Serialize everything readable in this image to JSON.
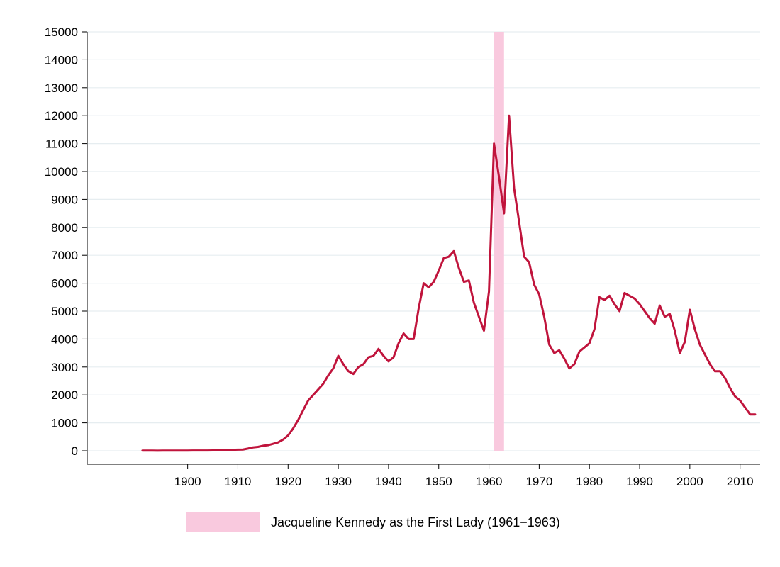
{
  "chart_data": {
    "type": "line",
    "title": "",
    "xlabel": "",
    "ylabel": "",
    "xlim": [
      1880,
      2014
    ],
    "ylim": [
      0,
      15000
    ],
    "x_ticks": [
      1900,
      1910,
      1920,
      1930,
      1940,
      1950,
      1960,
      1970,
      1980,
      1990,
      2000,
      2010
    ],
    "y_ticks": [
      0,
      1000,
      2000,
      3000,
      4000,
      5000,
      6000,
      7000,
      8000,
      9000,
      10000,
      11000,
      12000,
      13000,
      14000,
      15000
    ],
    "grid": "horizontal",
    "line_color": "#c0143c",
    "band_color": "#f9c9de",
    "highlight_band": {
      "label": "Jacqueline Kennedy as the First Lady (1961−1963)",
      "x_start": 1961,
      "x_end": 1963,
      "y_top": 15000
    },
    "legend_placement": "bottom-center",
    "series": [
      {
        "x": [
          1891,
          1892,
          1893,
          1894,
          1895,
          1896,
          1897,
          1898,
          1899,
          1900,
          1901,
          1902,
          1903,
          1904,
          1905,
          1906,
          1907,
          1908,
          1909,
          1910,
          1911,
          1912,
          1913,
          1914,
          1915,
          1916,
          1917,
          1918,
          1919,
          1920,
          1921,
          1922,
          1923,
          1924,
          1925,
          1926,
          1927,
          1928,
          1929,
          1930,
          1931,
          1932,
          1933,
          1934,
          1935,
          1936,
          1937,
          1938,
          1939,
          1940,
          1941,
          1942,
          1943,
          1944,
          1945,
          1946,
          1947,
          1948,
          1949,
          1950,
          1951,
          1952,
          1953,
          1954,
          1955,
          1956,
          1957,
          1958,
          1959,
          1960,
          1961,
          1962,
          1963,
          1964,
          1965,
          1966,
          1967,
          1968,
          1969,
          1970,
          1971,
          1972,
          1973,
          1974,
          1975,
          1976,
          1977,
          1978,
          1979,
          1980,
          1981,
          1982,
          1983,
          1984,
          1985,
          1986,
          1987,
          1988,
          1989,
          1990,
          1991,
          1992,
          1993,
          1994,
          1995,
          1996,
          1997,
          1998,
          1999,
          2000,
          2001,
          2002,
          2003,
          2004,
          2005,
          2006,
          2007,
          2008,
          2009,
          2010,
          2011,
          2012,
          2013
        ],
        "values": [
          5,
          5,
          5,
          4,
          5,
          5,
          5,
          6,
          6,
          7,
          8,
          8,
          8,
          10,
          12,
          15,
          25,
          30,
          35,
          40,
          45,
          80,
          120,
          140,
          180,
          200,
          250,
          300,
          400,
          550,
          800,
          1100,
          1450,
          1800,
          2000,
          2200,
          2400,
          2700,
          2950,
          3400,
          3100,
          2850,
          2750,
          3000,
          3100,
          3350,
          3400,
          3650,
          3400,
          3200,
          3350,
          3850,
          4200,
          4000,
          4000,
          5100,
          6000,
          5850,
          6050,
          6450,
          6900,
          6950,
          7150,
          6550,
          6050,
          6100,
          5300,
          4800,
          4300,
          5700,
          11000,
          9800,
          8500,
          12000,
          9400,
          8200,
          6950,
          6750,
          5950,
          5600,
          4800,
          3800,
          3500,
          3600,
          3300,
          2950,
          3100,
          3550,
          3700,
          3850,
          4350,
          5500,
          5400,
          5550,
          5250,
          5000,
          5650,
          5550,
          5450,
          5250,
          5000,
          4750,
          4550,
          5200,
          4800,
          4900,
          4300,
          3500,
          3900,
          5050,
          4350,
          3800,
          3450,
          3100,
          2850,
          2850,
          2600,
          2250,
          1950,
          1800,
          1550,
          1300,
          1300
        ]
      }
    ]
  }
}
